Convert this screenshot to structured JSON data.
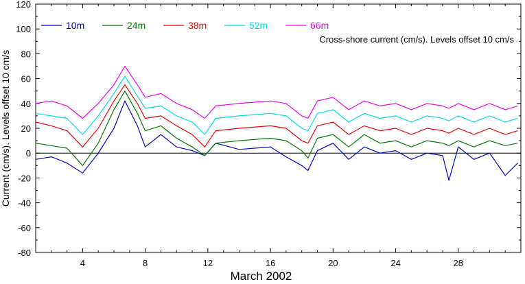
{
  "chart_data": {
    "type": "line",
    "annotation": "Cross-shore current (cm/s). Levels offset 10 cm/s",
    "xlabel": "March 2002",
    "ylabel": "Current (cm/s). Levels offset 10 cm/s",
    "xlim": [
      1,
      32
    ],
    "ylim": [
      -80,
      120
    ],
    "xticks": [
      4,
      8,
      12,
      16,
      20,
      24,
      28
    ],
    "yticks": [
      -80,
      -60,
      -40,
      -20,
      0,
      20,
      40,
      60,
      80,
      100,
      120
    ],
    "zero_line": true,
    "legend_position": "top-left",
    "x": [
      1,
      2,
      3,
      4,
      5,
      6,
      6.7,
      7.5,
      8,
      9,
      10,
      11,
      11.8,
      12.5,
      14,
      16,
      17,
      18,
      18.4,
      19,
      20,
      21,
      22,
      23,
      24,
      25,
      26,
      27,
      27.4,
      28,
      29,
      30,
      31,
      31.8
    ],
    "series": [
      {
        "name": "10m",
        "color": "#0000cc",
        "values": [
          -5,
          -3,
          -8,
          -16,
          0,
          20,
          42,
          22,
          5,
          15,
          5,
          2,
          -2,
          8,
          3,
          5,
          -3,
          -10,
          -14,
          2,
          8,
          -5,
          5,
          0,
          2,
          -5,
          0,
          -2,
          -22,
          5,
          -5,
          0,
          -18,
          -8
        ]
      },
      {
        "name": "24m",
        "color": "#007700",
        "values": [
          8,
          6,
          4,
          -10,
          8,
          35,
          50,
          32,
          18,
          22,
          12,
          5,
          -2,
          8,
          10,
          12,
          10,
          2,
          -4,
          12,
          15,
          5,
          15,
          8,
          10,
          5,
          10,
          8,
          6,
          10,
          5,
          10,
          6,
          8
        ]
      },
      {
        "name": "38m",
        "color": "#ee0000",
        "values": [
          25,
          22,
          18,
          5,
          20,
          42,
          55,
          40,
          28,
          30,
          22,
          15,
          5,
          18,
          20,
          22,
          20,
          10,
          8,
          22,
          25,
          15,
          22,
          18,
          20,
          15,
          20,
          18,
          16,
          20,
          15,
          20,
          15,
          18
        ]
      },
      {
        "name": "52m",
        "color": "#00dddd",
        "values": [
          32,
          30,
          28,
          15,
          30,
          48,
          62,
          46,
          36,
          38,
          30,
          25,
          15,
          28,
          30,
          32,
          30,
          20,
          18,
          32,
          35,
          25,
          32,
          28,
          30,
          25,
          30,
          28,
          26,
          30,
          25,
          30,
          25,
          28
        ]
      },
      {
        "name": "66m",
        "color": "#ee00ee",
        "values": [
          40,
          42,
          38,
          28,
          40,
          55,
          70,
          55,
          45,
          48,
          40,
          35,
          28,
          38,
          40,
          42,
          40,
          30,
          28,
          42,
          45,
          35,
          42,
          38,
          40,
          35,
          40,
          38,
          36,
          40,
          35,
          40,
          35,
          38
        ]
      }
    ]
  }
}
